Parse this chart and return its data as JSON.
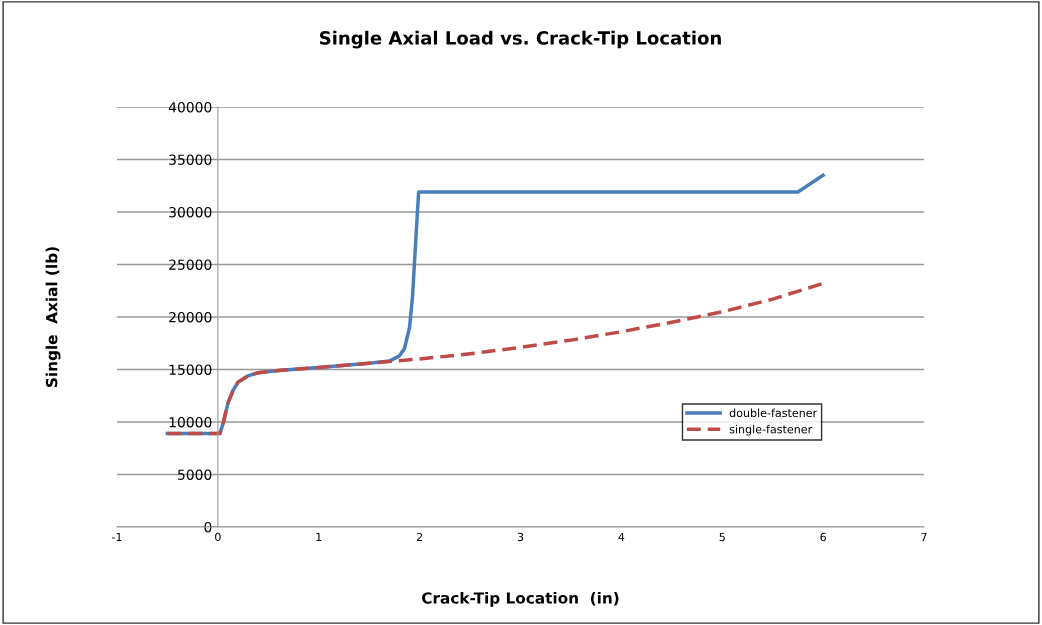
{
  "chart_data": {
    "type": "line",
    "title": "Single Axial Load vs. Crack-Tip Location",
    "xlabel": "Crack-Tip Location  (in)",
    "ylabel": "Single  Axial (lb)",
    "series": [
      {
        "name": "double-fastener",
        "color": "#4a7ebb",
        "line_style": "solid",
        "x": [
          -0.5,
          0.02,
          0.05,
          0.1,
          0.15,
          0.2,
          0.3,
          0.4,
          0.6,
          1.0,
          1.5,
          1.7,
          1.8,
          1.85,
          1.9,
          1.93,
          1.96,
          1.99,
          5.75,
          6.0
        ],
        "values": [
          8900,
          8900,
          9800,
          11800,
          13000,
          13800,
          14400,
          14700,
          14900,
          15200,
          15600,
          15800,
          16300,
          17000,
          19000,
          22000,
          27000,
          31900,
          31900,
          33500
        ]
      },
      {
        "name": "single-fastener",
        "color": "#be4b48",
        "line_style": "dashed",
        "x": [
          -0.5,
          0.02,
          0.05,
          0.1,
          0.15,
          0.2,
          0.3,
          0.4,
          0.6,
          1.0,
          1.5,
          2.0,
          2.5,
          3.0,
          3.5,
          4.0,
          4.5,
          5.0,
          5.5,
          6.0
        ],
        "values": [
          8900,
          8900,
          9800,
          11800,
          13000,
          13800,
          14400,
          14700,
          14900,
          15200,
          15600,
          16000,
          16500,
          17100,
          17800,
          18600,
          19500,
          20500,
          21700,
          23200
        ]
      }
    ],
    "xlim": [
      -1,
      7
    ],
    "xticks": [
      -1,
      0,
      1,
      2,
      3,
      4,
      5,
      6,
      7
    ],
    "ylim": [
      0,
      40000
    ],
    "yticks": [
      0,
      5000,
      10000,
      15000,
      20000,
      25000,
      30000,
      35000,
      40000
    ],
    "grid": "y",
    "legend": "right",
    "marker": "none"
  }
}
